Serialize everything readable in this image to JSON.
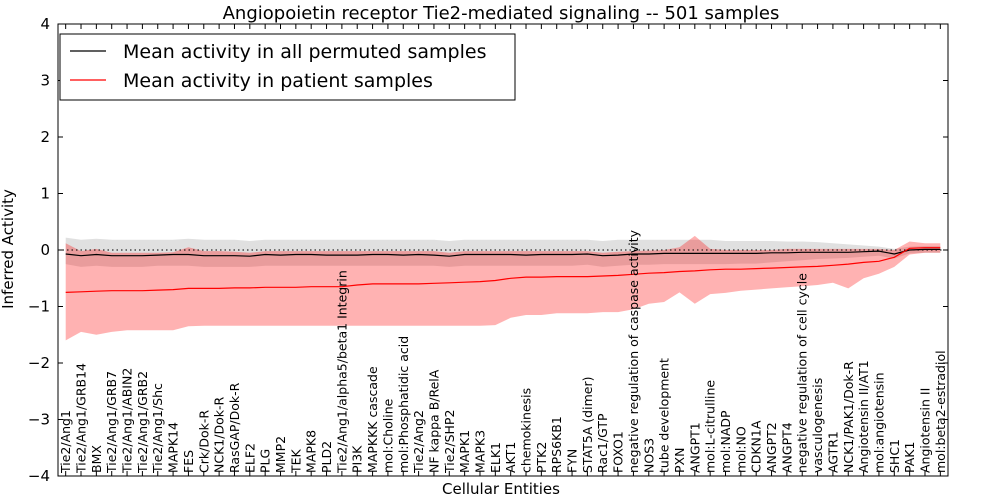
{
  "chart_data": {
    "type": "line",
    "title": "Angiopoietin receptor Tie2-mediated signaling -- 501 samples",
    "xlabel": "Cellular Entities",
    "ylabel": "Inferred Activity",
    "ylim": [
      -4,
      4
    ],
    "yticks": [
      -4,
      -3,
      -2,
      -1,
      0,
      1,
      2,
      3,
      4
    ],
    "ytick_labels": [
      "−4",
      "−3",
      "−2",
      "−1",
      "0",
      "1",
      "2",
      "3",
      "4"
    ],
    "xlim": [
      0,
      58
    ],
    "legend_position": "top-left",
    "categories": [
      "Tie2/Ang1",
      "Tie2/Ang1/GRB14",
      "BMX",
      "Tie2/Ang1/GRB7",
      "Tie2/Ang1/ABIN2",
      "Tie2/Ang1/GRB2",
      "Tie2/Ang1/Shc",
      "MAPK14",
      "FES",
      "Crk/Dok-R",
      "NCK1/Dok-R",
      "RasGAP/Dok-R",
      "ELF2",
      "PLG",
      "MMP2",
      "TEK",
      "MAPK8",
      "PLD2",
      "Tie2/Ang1/alpha5/beta1 Integrin",
      "PI3K",
      "MAPKKK cascade",
      "mol:Choline",
      "mol:Phosphatidic acid",
      "Tie2/Ang2",
      "NF kappa B/RelA",
      "Tie2/SHP2",
      "MAPK1",
      "MAPK3",
      "ELK1",
      "AKT1",
      "chemokinesis",
      "PTK2",
      "RPS6KB1",
      "FYN",
      "STAT5A (dimer)",
      "Rac1/GTP",
      "FOXO1",
      "negative regulation of caspase activity",
      "NOS3",
      "tube development",
      "PXN",
      "ANGPT1",
      "mol:L-citrulline",
      "mol:NADP",
      "mol:NO",
      "CDKN1A",
      "ANGPT2",
      "ANGPT4",
      "negative regulation of cell cycle",
      "vasculogenesis",
      "AGTR1",
      "NCK1/PAK1/Dok-R",
      "Angiotensin II/AT1",
      "mol:angiotensin",
      "SHC1",
      "PAK1",
      "Angiotensin II",
      "mol:beta2-estradiol"
    ],
    "series": [
      {
        "name": "Mean activity in all permuted samples",
        "color": "#000000",
        "values": [
          -0.07,
          -0.1,
          -0.08,
          -0.1,
          -0.1,
          -0.1,
          -0.09,
          -0.08,
          -0.08,
          -0.1,
          -0.1,
          -0.1,
          -0.11,
          -0.08,
          -0.09,
          -0.08,
          -0.08,
          -0.09,
          -0.09,
          -0.09,
          -0.08,
          -0.08,
          -0.09,
          -0.08,
          -0.09,
          -0.11,
          -0.08,
          -0.08,
          -0.08,
          -0.08,
          -0.09,
          -0.08,
          -0.08,
          -0.08,
          -0.07,
          -0.1,
          -0.09,
          -0.07,
          -0.07,
          -0.06,
          -0.06,
          -0.06,
          -0.06,
          -0.06,
          -0.06,
          -0.06,
          -0.05,
          -0.05,
          -0.04,
          -0.04,
          -0.04,
          -0.04,
          -0.03,
          -0.02,
          -0.07,
          0,
          0.01,
          0.01
        ],
        "lower": [
          -0.25,
          -0.3,
          -0.28,
          -0.3,
          -0.3,
          -0.3,
          -0.28,
          -0.28,
          -0.28,
          -0.3,
          -0.3,
          -0.3,
          -0.3,
          -0.28,
          -0.28,
          -0.28,
          -0.28,
          -0.28,
          -0.28,
          -0.28,
          -0.28,
          -0.28,
          -0.28,
          -0.28,
          -0.28,
          -0.3,
          -0.28,
          -0.28,
          -0.28,
          -0.28,
          -0.28,
          -0.28,
          -0.28,
          -0.28,
          -0.26,
          -0.3,
          -0.28,
          -0.26,
          -0.26,
          -0.25,
          -0.25,
          -0.25,
          -0.25,
          -0.25,
          -0.24,
          -0.24,
          -0.22,
          -0.2,
          -0.18,
          -0.16,
          -0.15,
          -0.14,
          -0.12,
          -0.1,
          -0.15,
          -0.06,
          -0.05,
          -0.05
        ],
        "upper": [
          0.22,
          0.18,
          0.2,
          0.18,
          0.18,
          0.18,
          0.18,
          0.18,
          0.2,
          0.18,
          0.18,
          0.18,
          0.16,
          0.18,
          0.18,
          0.18,
          0.18,
          0.18,
          0.18,
          0.18,
          0.18,
          0.18,
          0.18,
          0.18,
          0.18,
          0.16,
          0.18,
          0.18,
          0.18,
          0.18,
          0.18,
          0.18,
          0.18,
          0.18,
          0.18,
          0.16,
          0.18,
          0.18,
          0.18,
          0.18,
          0.18,
          0.18,
          0.18,
          0.16,
          0.16,
          0.16,
          0.16,
          0.15,
          0.15,
          0.14,
          0.12,
          0.1,
          0.08,
          0.06,
          0.02,
          0.06,
          0.07,
          0.07
        ]
      },
      {
        "name": "Mean activity in patient samples",
        "color": "#ff0000",
        "values": [
          -0.75,
          -0.74,
          -0.73,
          -0.72,
          -0.72,
          -0.72,
          -0.71,
          -0.7,
          -0.68,
          -0.68,
          -0.68,
          -0.67,
          -0.67,
          -0.66,
          -0.66,
          -0.66,
          -0.65,
          -0.65,
          -0.65,
          -0.62,
          -0.6,
          -0.6,
          -0.6,
          -0.6,
          -0.59,
          -0.58,
          -0.57,
          -0.56,
          -0.54,
          -0.5,
          -0.48,
          -0.48,
          -0.47,
          -0.47,
          -0.47,
          -0.46,
          -0.45,
          -0.43,
          -0.41,
          -0.4,
          -0.38,
          -0.37,
          -0.35,
          -0.34,
          -0.34,
          -0.33,
          -0.32,
          -0.31,
          -0.3,
          -0.29,
          -0.27,
          -0.25,
          -0.22,
          -0.2,
          -0.13,
          0.03,
          0.04,
          0.04
        ],
        "lower": [
          -1.6,
          -1.45,
          -1.5,
          -1.45,
          -1.42,
          -1.42,
          -1.42,
          -1.42,
          -1.35,
          -1.34,
          -1.34,
          -1.34,
          -1.34,
          -1.34,
          -1.34,
          -1.34,
          -1.34,
          -1.34,
          -1.34,
          -1.34,
          -1.34,
          -1.34,
          -1.34,
          -1.34,
          -1.34,
          -1.34,
          -1.34,
          -1.34,
          -1.33,
          -1.2,
          -1.15,
          -1.15,
          -1.12,
          -1.12,
          -1.12,
          -1.1,
          -1.1,
          -1.05,
          -0.95,
          -0.92,
          -0.75,
          -0.95,
          -0.78,
          -0.76,
          -0.72,
          -0.7,
          -0.68,
          -0.66,
          -0.64,
          -0.62,
          -0.58,
          -0.68,
          -0.5,
          -0.42,
          -0.3,
          -0.08,
          -0.05,
          -0.05
        ],
        "upper": [
          0.12,
          -0.02,
          0.02,
          -0.05,
          -0.05,
          -0.05,
          -0.05,
          -0.04,
          0.05,
          -0.02,
          -0.02,
          -0.03,
          -0.05,
          -0.02,
          -0.02,
          -0.02,
          -0.02,
          -0.02,
          -0.02,
          -0.02,
          -0.02,
          -0.02,
          -0.02,
          -0.02,
          -0.02,
          -0.05,
          -0.02,
          -0.02,
          -0.02,
          -0.02,
          -0.02,
          -0.02,
          -0.02,
          -0.02,
          -0.02,
          -0.05,
          -0.03,
          -0.02,
          -0.01,
          0,
          0.05,
          0.25,
          0.02,
          0,
          0,
          0,
          0,
          0.02,
          0.02,
          0.02,
          0.02,
          0.02,
          0.02,
          0.02,
          0,
          0.15,
          0.12,
          0.12
        ]
      }
    ]
  }
}
